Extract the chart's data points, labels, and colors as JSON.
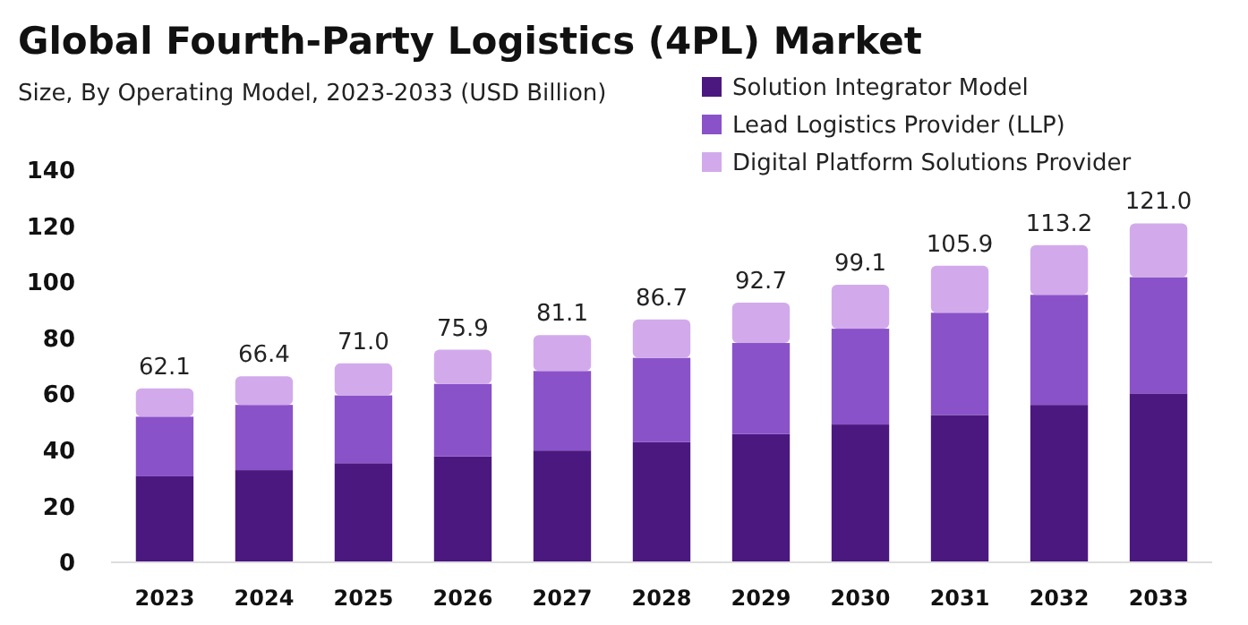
{
  "chart_data": {
    "type": "bar",
    "title": "Global Fourth-Party Logistics (4PL) Market",
    "subtitle": "Size, By Operating Model, 2023-2033 (USD Billion)",
    "categories": [
      "2023",
      "2024",
      "2025",
      "2026",
      "2027",
      "2028",
      "2029",
      "2030",
      "2031",
      "2032",
      "2033"
    ],
    "stacked": true,
    "series": [
      {
        "name": "Solution Integrator Model",
        "color": "#4b1880",
        "values": [
          30.7,
          32.9,
          35.4,
          37.8,
          39.9,
          42.9,
          45.8,
          49.2,
          52.6,
          56.2,
          60.3
        ]
      },
      {
        "name": "Lead Logistics Provider (LLP)",
        "color": "#8a52c9",
        "values": [
          21.3,
          23.3,
          24.2,
          25.9,
          28.4,
          30.1,
          32.5,
          34.2,
          36.5,
          39.3,
          41.5
        ]
      },
      {
        "name": "Digital Platform Solutions Provider",
        "color": "#d2aaec",
        "values": [
          10.1,
          10.2,
          11.4,
          12.2,
          12.8,
          13.7,
          14.4,
          15.7,
          16.8,
          17.7,
          19.2
        ]
      }
    ],
    "totals": [
      "62.1",
      "66.4",
      "71.0",
      "75.9",
      "81.1",
      "86.7",
      "92.7",
      "99.1",
      "105.9",
      "113.2",
      "121.0"
    ],
    "ylim": [
      0,
      140
    ],
    "yticks": [
      0,
      20,
      40,
      60,
      80,
      100,
      120,
      140
    ],
    "legend": "top right"
  }
}
